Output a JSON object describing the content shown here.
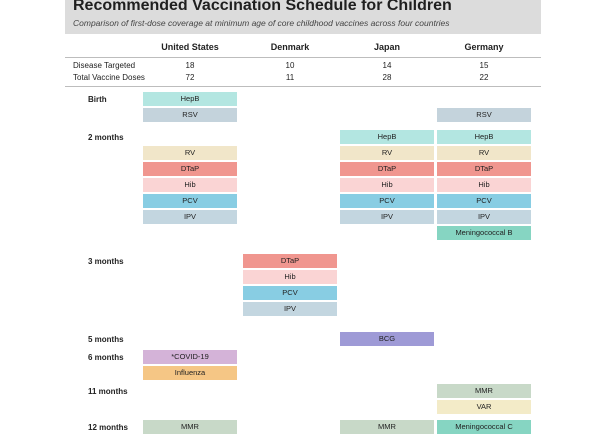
{
  "title": "Recommended Vaccination Schedule for Children",
  "subtitle": "Comparison of first-dose coverage at minimum age of core childhood vaccines across four countries",
  "chart_data": {
    "type": "table",
    "countries": [
      "United States",
      "Denmark",
      "Japan",
      "Germany"
    ],
    "stats": [
      {
        "label": "Disease Targeted",
        "values": [
          "18",
          "10",
          "14",
          "15"
        ]
      },
      {
        "label": "Total Vaccine Doses",
        "values": [
          "72",
          "11",
          "28",
          "22"
        ]
      }
    ],
    "ages": [
      {
        "label": "Birth",
        "vaccines": [
          [
            "HepB",
            "RSV"
          ],
          [],
          [],
          [
            "RSV"
          ]
        ]
      },
      {
        "label": "2 months",
        "vaccines": [
          [
            "RV",
            "DTaP",
            "Hib",
            "PCV",
            "IPV"
          ],
          [],
          [
            "HepB",
            "RV",
            "DTaP",
            "Hib",
            "PCV",
            "IPV"
          ],
          [
            "HepB",
            "RV",
            "DTaP",
            "Hib",
            "PCV",
            "IPV",
            "Meningococcal B"
          ]
        ]
      },
      {
        "label": "3 months",
        "vaccines": [
          [],
          [
            "DTaP",
            "Hib",
            "PCV",
            "IPV"
          ],
          [],
          []
        ]
      },
      {
        "label": "5 months",
        "vaccines": [
          [],
          [],
          [
            "BCG"
          ],
          []
        ]
      },
      {
        "label": "6 months",
        "vaccines": [
          [
            "*COVID-19",
            "Influenza"
          ],
          [],
          [],
          []
        ]
      },
      {
        "label": "11 months",
        "vaccines": [
          [],
          [],
          [],
          [
            "MMR",
            "VAR"
          ]
        ]
      },
      {
        "label": "12 months",
        "vaccines": [
          [
            "MMR"
          ],
          [],
          [
            "MMR"
          ],
          [
            "Meningococcal C"
          ]
        ]
      }
    ],
    "colors": {
      "HepB": "#b3e6e1",
      "RSV": "#c4d3dc",
      "RV": "#f1e6c9",
      "DTaP": "#f0968f",
      "Hib": "#fad4d4",
      "PCV": "#88cde3",
      "IPV": "#c3d6e0",
      "Meningococcal B": "#86d5c2",
      "BCG": "#9e9ad6",
      "*COVID-19": "#d4b3d8",
      "Influenza": "#f5c685",
      "MMR": "#c8d9c8",
      "VAR": "#f3ebc8",
      "Meningococcal C": "#86d5c2"
    }
  }
}
